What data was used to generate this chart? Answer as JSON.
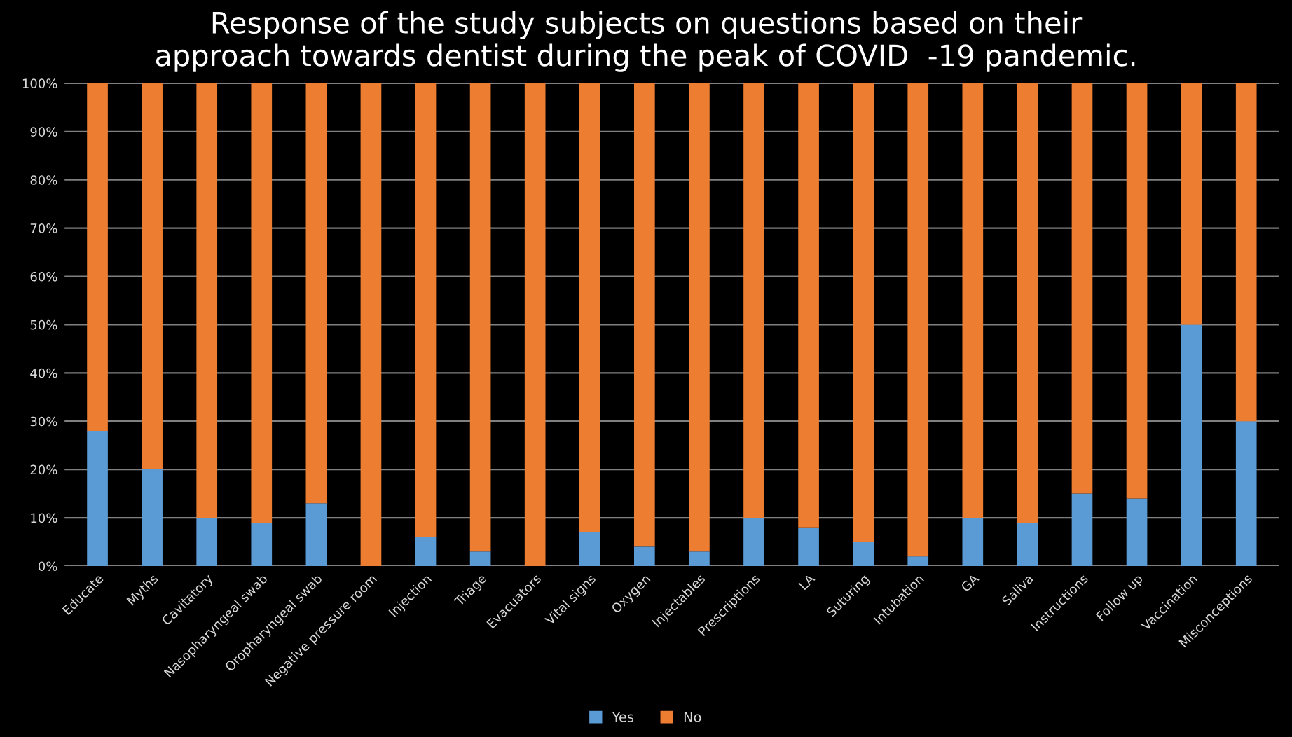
{
  "chart_data": {
    "type": "bar",
    "title": "Response of the study subjects on questions based on their\napproach towards dentist during the peak of COVID  -19 pandemic.",
    "categories": [
      "Educate",
      "Myths",
      "Cavitatory",
      "Nasopharyngeal swab",
      "Oropharyngeal swab",
      "Negative pressure room",
      "Injection",
      "Triage",
      "Evacuators",
      "Vital signs",
      "Oxygen",
      "Injectables",
      "Prescriptions",
      "LA",
      "Suturing",
      "Intubation",
      "GA",
      "Saliva",
      "Instructions",
      "Follow up",
      "Vaccination",
      "Misconceptions"
    ],
    "stacked": true,
    "series": [
      {
        "name": "Yes",
        "color": "#5b9bd5",
        "values": [
          28,
          20,
          10,
          9,
          13,
          0,
          6,
          3,
          0,
          7,
          4,
          3,
          10,
          8,
          5,
          2,
          10,
          9,
          15,
          14,
          50,
          30
        ]
      },
      {
        "name": "No",
        "color": "#ed7d31",
        "values": [
          72,
          80,
          90,
          91,
          87,
          100,
          94,
          97,
          100,
          93,
          96,
          97,
          90,
          92,
          95,
          98,
          90,
          91,
          85,
          86,
          50,
          70
        ]
      }
    ],
    "ylim": [
      0,
      100
    ],
    "yticks": [
      {
        "value": 0,
        "label": "0%"
      },
      {
        "value": 10,
        "label": "10%"
      },
      {
        "value": 20,
        "label": "20%"
      },
      {
        "value": 30,
        "label": "30%"
      },
      {
        "value": 40,
        "label": "40%"
      },
      {
        "value": 50,
        "label": "50%"
      },
      {
        "value": 60,
        "label": "60%"
      },
      {
        "value": 70,
        "label": "70%"
      },
      {
        "value": 80,
        "label": "80%"
      },
      {
        "value": 90,
        "label": "90%"
      },
      {
        "value": 100,
        "label": "100%"
      }
    ],
    "grid": "y",
    "legend": "bottom"
  }
}
